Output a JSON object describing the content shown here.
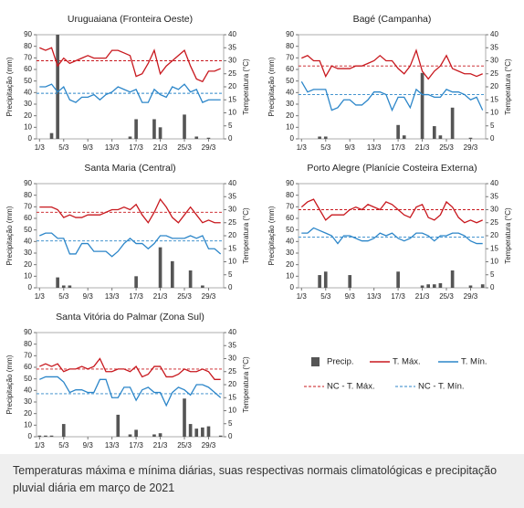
{
  "chart_data": [
    {
      "type": "bar-line",
      "title": "Uruguaiana (Fronteira Oeste)",
      "ylabel": "Precipitação (mm)",
      "y2label": "Temperatura (°C)",
      "x": [
        1,
        2,
        3,
        4,
        5,
        6,
        7,
        8,
        9,
        10,
        11,
        12,
        13,
        14,
        15,
        16,
        17,
        18,
        19,
        20,
        21,
        22,
        23,
        24,
        25,
        26,
        27,
        28,
        29,
        30,
        31
      ],
      "xlim": [
        0.5,
        31.5
      ],
      "xticks": [
        {
          "value": 1,
          "label": "1/3"
        },
        {
          "value": 5,
          "label": "5/3"
        },
        {
          "value": 9,
          "label": "9/3"
        },
        {
          "value": 13,
          "label": "13/3"
        },
        {
          "value": 17,
          "label": "17/3"
        },
        {
          "value": 21,
          "label": "21/3"
        },
        {
          "value": 25,
          "label": "25/3"
        },
        {
          "value": 29,
          "label": "29/3"
        }
      ],
      "ylim": [
        0,
        90
      ],
      "yticks": [
        0,
        10,
        20,
        30,
        40,
        50,
        60,
        70,
        80,
        90
      ],
      "y2lim": [
        0,
        40
      ],
      "y2ticks": [
        0,
        5,
        10,
        15,
        20,
        25,
        30,
        35,
        40
      ],
      "series": [
        {
          "name": "Precip.",
          "color": "#555555",
          "values": [
            0,
            0,
            5,
            90,
            0,
            0,
            0,
            0,
            0,
            0,
            0,
            0,
            0,
            0,
            0,
            2,
            17,
            0,
            0,
            17,
            10,
            0,
            0,
            0,
            21,
            0,
            2,
            0,
            1,
            0,
            0
          ]
        },
        {
          "name": "T. Máx.",
          "color": "#c8181e",
          "axis": "y2",
          "values": [
            35,
            34,
            35,
            28,
            31,
            29,
            30,
            31,
            32,
            31,
            31,
            31,
            34,
            34,
            33,
            32,
            24,
            25,
            29,
            34,
            25,
            28,
            30,
            32,
            34,
            28,
            23,
            22,
            26,
            26,
            27
          ]
        },
        {
          "name": "T. Mín.",
          "color": "#2c86c9",
          "axis": "y2",
          "values": [
            20,
            20,
            21,
            18,
            20,
            15,
            14,
            16,
            16,
            17,
            15,
            17,
            18,
            20,
            19,
            18,
            19,
            14,
            14,
            19,
            17,
            16,
            20,
            19,
            21,
            18,
            19,
            14,
            15,
            15,
            15
          ]
        },
        {
          "name": "NC - T. Máx.",
          "color": "#c8181e",
          "axis": "y2",
          "dashed": true,
          "value": 30
        },
        {
          "name": "NC - T. Mín.",
          "color": "#2c86c9",
          "axis": "y2",
          "dashed": true,
          "value": 17.5
        }
      ]
    },
    {
      "type": "bar-line",
      "title": "Bagé (Campanha)",
      "ylabel": "Precipitação (mm)",
      "y2label": "Temperatura (°C)",
      "x": [
        1,
        2,
        3,
        4,
        5,
        6,
        7,
        8,
        9,
        10,
        11,
        12,
        13,
        14,
        15,
        16,
        17,
        18,
        19,
        20,
        21,
        22,
        23,
        24,
        25,
        26,
        27,
        28,
        29,
        30,
        31
      ],
      "xlim": [
        0.5,
        31.5
      ],
      "xticks": [
        {
          "value": 1,
          "label": "1/3"
        },
        {
          "value": 5,
          "label": "5/3"
        },
        {
          "value": 9,
          "label": "9/3"
        },
        {
          "value": 13,
          "label": "13/3"
        },
        {
          "value": 17,
          "label": "17/3"
        },
        {
          "value": 21,
          "label": "21/3"
        },
        {
          "value": 25,
          "label": "25/3"
        },
        {
          "value": 29,
          "label": "29/3"
        }
      ],
      "ylim": [
        0,
        90
      ],
      "yticks": [
        0,
        10,
        20,
        30,
        40,
        50,
        60,
        70,
        80,
        90
      ],
      "y2lim": [
        0,
        40
      ],
      "y2ticks": [
        0,
        5,
        10,
        15,
        20,
        25,
        30,
        35,
        40
      ],
      "series": [
        {
          "name": "Precip.",
          "color": "#555555",
          "values": [
            0,
            0,
            0,
            2,
            2,
            0,
            0,
            0,
            0,
            0,
            0,
            0,
            0,
            0,
            0,
            0,
            12,
            3,
            0,
            0,
            57,
            0,
            11,
            3,
            0,
            27,
            0,
            0,
            1,
            0,
            0
          ]
        },
        {
          "name": "T. Máx.",
          "color": "#c8181e",
          "axis": "y2",
          "values": [
            31,
            32,
            30,
            30,
            24,
            28,
            27,
            27,
            27,
            28,
            28,
            29,
            30,
            32,
            30,
            30,
            27,
            25,
            28,
            34,
            26,
            23,
            26,
            28,
            32,
            27,
            26,
            25,
            25,
            24,
            25
          ]
        },
        {
          "name": "T. Mín.",
          "color": "#2c86c9",
          "axis": "y2",
          "values": [
            22,
            18,
            19,
            19,
            19,
            11,
            12,
            15,
            15,
            13,
            13,
            15,
            18,
            18,
            17,
            11,
            16,
            16,
            12,
            19,
            17,
            17,
            16,
            16,
            19,
            18,
            18,
            17,
            15,
            16,
            11
          ]
        },
        {
          "name": "NC - T. Máx.",
          "color": "#c8181e",
          "axis": "y2",
          "dashed": true,
          "value": 28
        },
        {
          "name": "NC - T. Mín.",
          "color": "#2c86c9",
          "axis": "y2",
          "dashed": true,
          "value": 17
        }
      ]
    },
    {
      "type": "bar-line",
      "title": "Santa Maria (Central)",
      "ylabel": "Precipitação (mm)",
      "y2label": "Temperatura (°C)",
      "x": [
        1,
        2,
        3,
        4,
        5,
        6,
        7,
        8,
        9,
        10,
        11,
        12,
        13,
        14,
        15,
        16,
        17,
        18,
        19,
        20,
        21,
        22,
        23,
        24,
        25,
        26,
        27,
        28,
        29,
        30,
        31
      ],
      "xlim": [
        0.5,
        31.5
      ],
      "xticks": [
        {
          "value": 1,
          "label": "1/3"
        },
        {
          "value": 5,
          "label": "5/3"
        },
        {
          "value": 9,
          "label": "9/3"
        },
        {
          "value": 13,
          "label": "13/3"
        },
        {
          "value": 17,
          "label": "17/3"
        },
        {
          "value": 21,
          "label": "21/3"
        },
        {
          "value": 25,
          "label": "25/3"
        },
        {
          "value": 29,
          "label": "29/3"
        }
      ],
      "ylim": [
        0,
        90
      ],
      "yticks": [
        0,
        10,
        20,
        30,
        40,
        50,
        60,
        70,
        80,
        90
      ],
      "y2lim": [
        0,
        40
      ],
      "y2ticks": [
        0,
        5,
        10,
        15,
        20,
        25,
        30,
        35,
        40
      ],
      "series": [
        {
          "name": "Precip.",
          "color": "#555555",
          "values": [
            0,
            0,
            0,
            9,
            2,
            2,
            0,
            0,
            0,
            0,
            0,
            0,
            0,
            0,
            0,
            0,
            10,
            0,
            0,
            0,
            35,
            0,
            23,
            0,
            0,
            15,
            0,
            2,
            0,
            0,
            0
          ]
        },
        {
          "name": "T. Máx.",
          "color": "#c8181e",
          "axis": "y2",
          "values": [
            31,
            31,
            31,
            30,
            27,
            28,
            27,
            27,
            28,
            28,
            28,
            29,
            30,
            30,
            31,
            30,
            32,
            28,
            25,
            29,
            34,
            31,
            27,
            25,
            28,
            31,
            28,
            25,
            26,
            25,
            25
          ]
        },
        {
          "name": "T. Mín.",
          "color": "#2c86c9",
          "axis": "y2",
          "values": [
            20,
            21,
            21,
            19,
            19,
            13,
            13,
            17,
            17,
            14,
            14,
            14,
            12,
            14,
            17,
            19,
            17,
            17,
            15,
            17,
            20,
            20,
            19,
            19,
            19,
            20,
            19,
            20,
            15,
            15,
            13
          ]
        },
        {
          "name": "NC - T. Máx.",
          "color": "#c8181e",
          "axis": "y2",
          "dashed": true,
          "value": 29
        },
        {
          "name": "NC - T. Mín.",
          "color": "#2c86c9",
          "axis": "y2",
          "dashed": true,
          "value": 18
        }
      ]
    },
    {
      "type": "bar-line",
      "title": "Porto Alegre (Planície Costeira Externa)",
      "ylabel": "Precipitação (mm)",
      "y2label": "Temperatura (°C)",
      "x": [
        1,
        2,
        3,
        4,
        5,
        6,
        7,
        8,
        9,
        10,
        11,
        12,
        13,
        14,
        15,
        16,
        17,
        18,
        19,
        20,
        21,
        22,
        23,
        24,
        25,
        26,
        27,
        28,
        29,
        30,
        31
      ],
      "xlim": [
        0.5,
        31.5
      ],
      "xticks": [
        {
          "value": 1,
          "label": "1/3"
        },
        {
          "value": 5,
          "label": "5/3"
        },
        {
          "value": 9,
          "label": "9/3"
        },
        {
          "value": 13,
          "label": "13/3"
        },
        {
          "value": 17,
          "label": "17/3"
        },
        {
          "value": 21,
          "label": "21/3"
        },
        {
          "value": 25,
          "label": "25/3"
        },
        {
          "value": 29,
          "label": "29/3"
        }
      ],
      "ylim": [
        0,
        90
      ],
      "yticks": [
        0,
        10,
        20,
        30,
        40,
        50,
        60,
        70,
        80,
        90
      ],
      "y2lim": [
        0,
        40
      ],
      "y2ticks": [
        0,
        5,
        10,
        15,
        20,
        25,
        30,
        35,
        40
      ],
      "series": [
        {
          "name": "Precip.",
          "color": "#555555",
          "values": [
            0,
            0,
            0,
            11,
            14,
            0,
            0,
            0,
            11,
            0,
            0,
            0,
            0,
            0,
            0,
            0,
            14,
            0,
            0,
            0,
            2,
            3,
            3,
            4,
            0,
            15,
            0,
            0,
            2,
            0,
            3
          ]
        },
        {
          "name": "T. Máx.",
          "color": "#c8181e",
          "axis": "y2",
          "values": [
            31,
            33,
            34,
            30,
            26,
            28,
            28,
            28,
            30,
            31,
            30,
            32,
            31,
            30,
            33,
            32,
            30,
            28,
            27,
            31,
            32,
            27,
            26,
            28,
            33,
            31,
            27,
            25,
            26,
            25,
            26
          ]
        },
        {
          "name": "T. Mín.",
          "color": "#2c86c9",
          "axis": "y2",
          "values": [
            21,
            21,
            23,
            22,
            21,
            20,
            17,
            20,
            20,
            19,
            18,
            18,
            19,
            21,
            20,
            21,
            19,
            18,
            19,
            21,
            21,
            20,
            18,
            20,
            20,
            21,
            21,
            20,
            18,
            17,
            17
          ]
        },
        {
          "name": "NC - T. Máx.",
          "color": "#c8181e",
          "axis": "y2",
          "dashed": true,
          "value": 30
        },
        {
          "name": "NC - T. Mín.",
          "color": "#2c86c9",
          "axis": "y2",
          "dashed": true,
          "value": 19.5
        }
      ]
    },
    {
      "type": "bar-line",
      "title": "Santa Vitória do Palmar (Zona Sul)",
      "ylabel": "Precipitação (mm)",
      "y2label": "Temperatura (°C)",
      "x": [
        1,
        2,
        3,
        4,
        5,
        6,
        7,
        8,
        9,
        10,
        11,
        12,
        13,
        14,
        15,
        16,
        17,
        18,
        19,
        20,
        21,
        22,
        23,
        24,
        25,
        26,
        27,
        28,
        29,
        30,
        31
      ],
      "xlim": [
        0.5,
        31.5
      ],
      "xticks": [
        {
          "value": 1,
          "label": "1/3"
        },
        {
          "value": 5,
          "label": "5/3"
        },
        {
          "value": 9,
          "label": "9/3"
        },
        {
          "value": 13,
          "label": "13/3"
        },
        {
          "value": 17,
          "label": "17/3"
        },
        {
          "value": 21,
          "label": "21/3"
        },
        {
          "value": 25,
          "label": "25/3"
        },
        {
          "value": 29,
          "label": "29/3"
        }
      ],
      "ylim": [
        0,
        90
      ],
      "yticks": [
        0,
        10,
        20,
        30,
        40,
        50,
        60,
        70,
        80,
        90
      ],
      "y2lim": [
        0,
        40
      ],
      "y2ticks": [
        0,
        5,
        10,
        15,
        20,
        25,
        30,
        35,
        40
      ],
      "series": [
        {
          "name": "Precip.",
          "color": "#555555",
          "values": [
            1,
            1,
            1,
            0,
            11,
            0,
            0,
            0,
            0,
            0,
            0,
            0,
            0,
            19,
            0,
            2,
            6,
            0,
            0,
            2,
            3,
            0,
            0,
            0,
            33,
            11,
            7,
            8,
            9,
            0,
            1
          ]
        },
        {
          "name": "T. Máx.",
          "color": "#c8181e",
          "axis": "y2",
          "values": [
            27,
            28,
            27,
            28,
            25,
            26,
            26,
            27,
            26,
            27,
            30,
            25,
            25,
            26,
            26,
            25,
            27,
            23,
            24,
            27,
            27,
            23,
            23,
            24,
            26,
            25,
            25,
            26,
            25,
            22,
            22
          ]
        },
        {
          "name": "T. Mín.",
          "color": "#2c86c9",
          "axis": "y2",
          "values": [
            22,
            23,
            23,
            23,
            21,
            17,
            18,
            18,
            17,
            17,
            22,
            22,
            15,
            15,
            19,
            19,
            14,
            18,
            19,
            17,
            17,
            12,
            17,
            19,
            18,
            16,
            20,
            20,
            19,
            17,
            15
          ]
        },
        {
          "name": "NC - T. Máx.",
          "color": "#c8181e",
          "axis": "y2",
          "dashed": true,
          "value": 26
        },
        {
          "name": "NC - T. Mín.",
          "color": "#2c86c9",
          "axis": "y2",
          "dashed": true,
          "value": 16.5
        }
      ]
    }
  ],
  "caption": "Temperaturas máxima e mínima diárias, suas respectivas normais climatológicas e precipitação pluvial diária em março de 2021"
}
